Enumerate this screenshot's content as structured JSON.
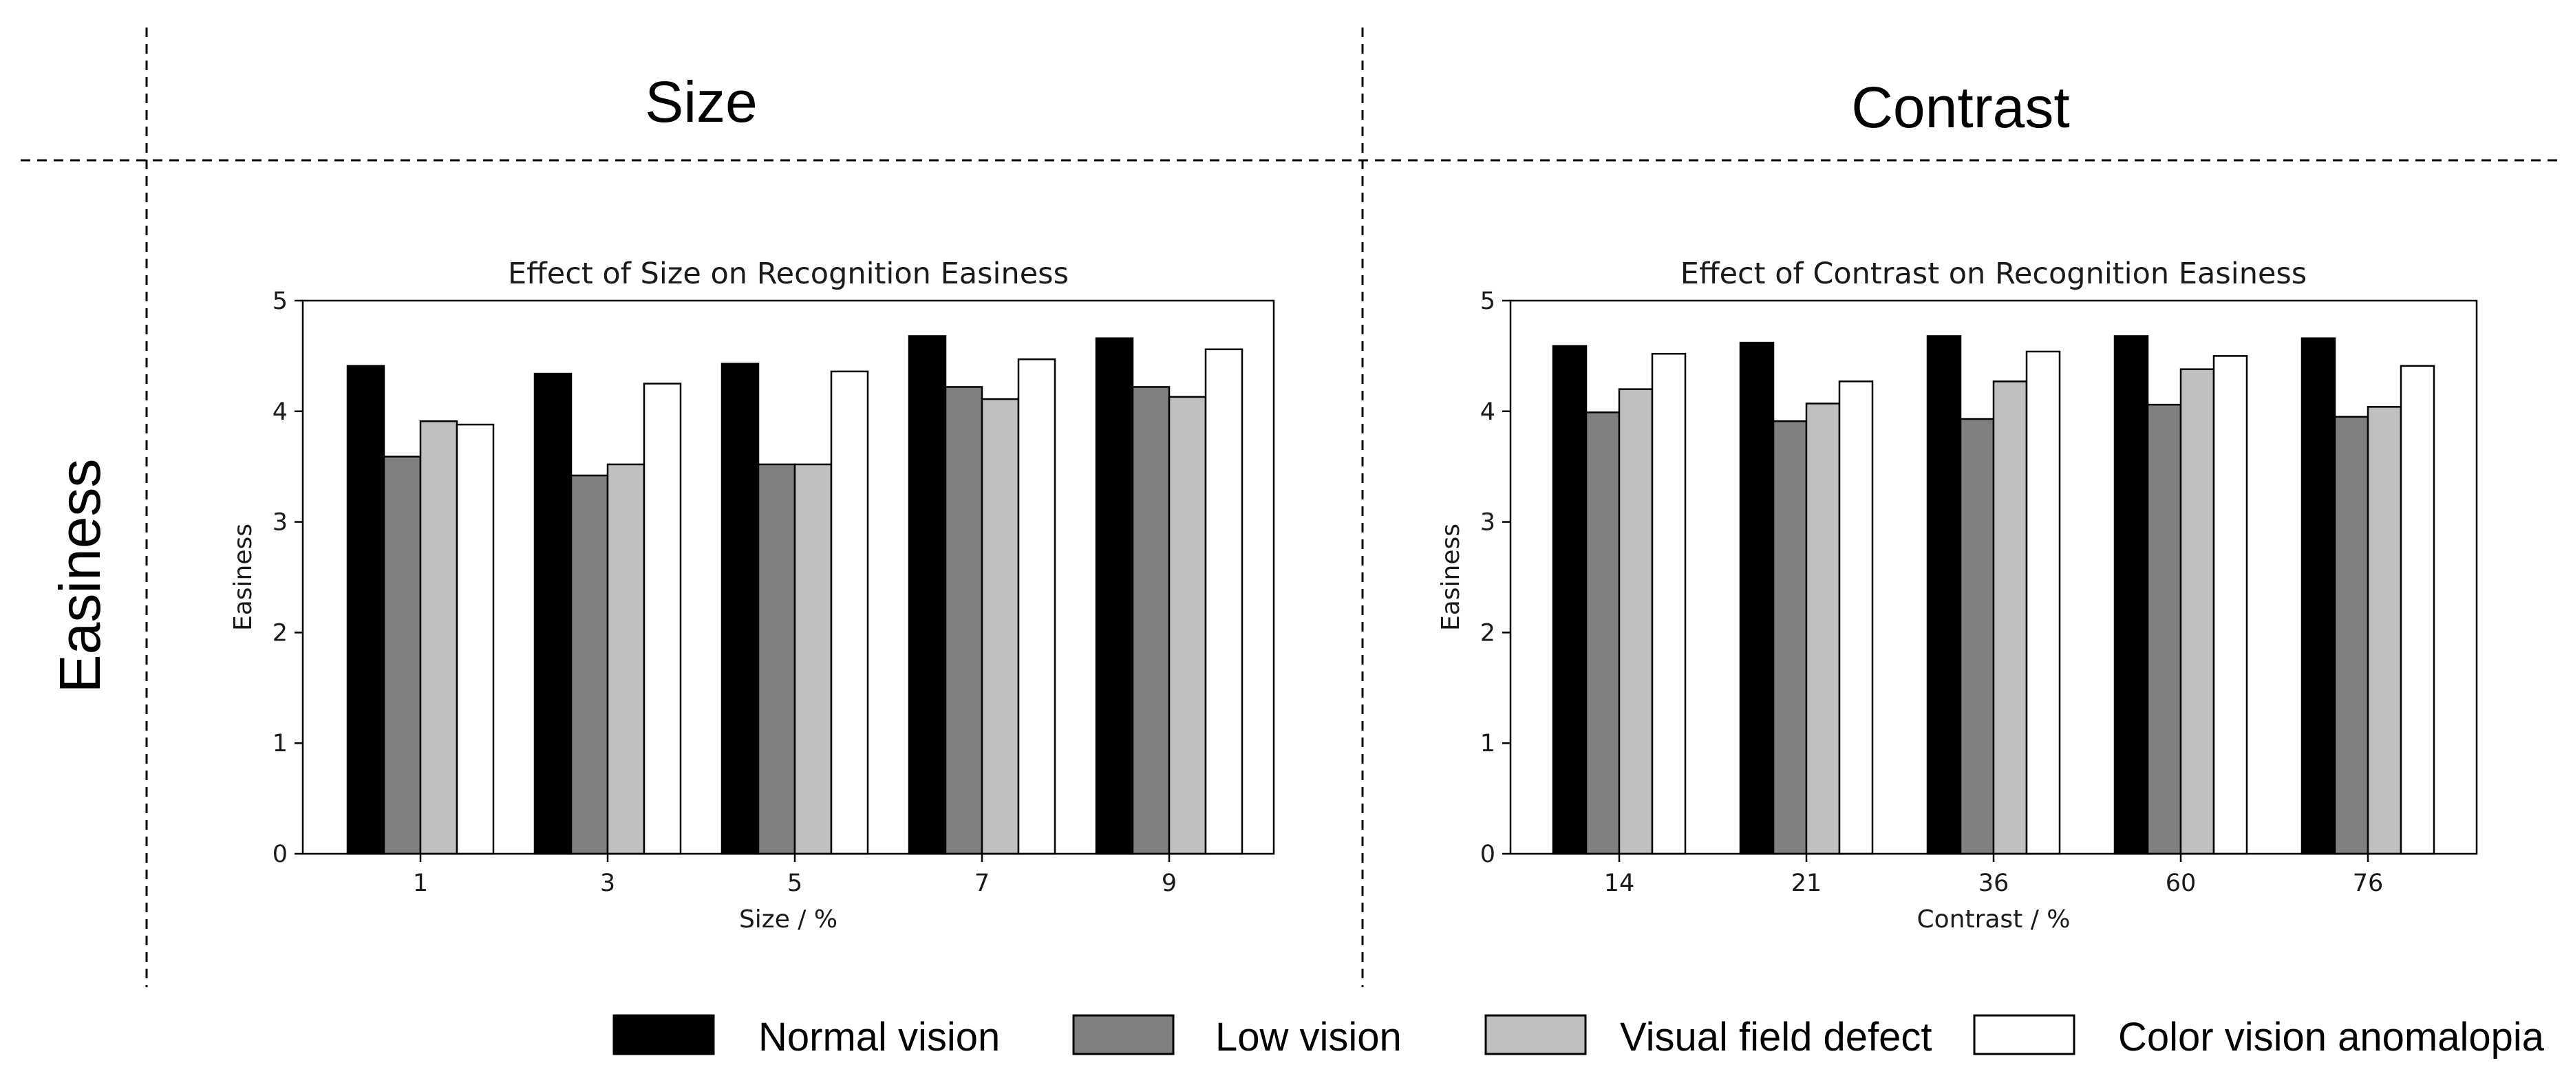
{
  "headers": {
    "size": "Size",
    "contrast": "Contrast",
    "row": "Easiness"
  },
  "legend": [
    {
      "label": "Normal vision",
      "color": "#000000"
    },
    {
      "label": "Low vision",
      "color": "#808080"
    },
    {
      "label": "Visual field defect",
      "color": "#c0c0c0"
    },
    {
      "label": "Color vision anomalopia",
      "color": "#ffffff"
    }
  ],
  "chart_data": [
    {
      "type": "bar",
      "title": "Effect of Size on Recognition Easiness",
      "xlabel": "Size / %",
      "ylabel": "Easiness",
      "ylim": [
        0,
        5
      ],
      "yticks": [
        0,
        1,
        2,
        3,
        4,
        5
      ],
      "categories": [
        "1",
        "3",
        "5",
        "7",
        "9"
      ],
      "series": [
        {
          "name": "Normal vision",
          "color": "#000000",
          "values": [
            4.41,
            4.34,
            4.43,
            4.68,
            4.66
          ]
        },
        {
          "name": "Low vision",
          "color": "#808080",
          "values": [
            3.59,
            3.42,
            3.52,
            4.22,
            4.22
          ]
        },
        {
          "name": "Visual field defect",
          "color": "#c0c0c0",
          "values": [
            3.91,
            3.52,
            3.52,
            4.11,
            4.13
          ]
        },
        {
          "name": "Color vision anomalopia",
          "color": "#ffffff",
          "values": [
            3.88,
            4.25,
            4.36,
            4.47,
            4.56
          ]
        }
      ]
    },
    {
      "type": "bar",
      "title": "Effect of Contrast on Recognition Easiness",
      "xlabel": "Contrast / %",
      "ylabel": "Easiness",
      "ylim": [
        0,
        5
      ],
      "yticks": [
        0,
        1,
        2,
        3,
        4,
        5
      ],
      "categories": [
        "14",
        "21",
        "36",
        "60",
        "76"
      ],
      "series": [
        {
          "name": "Normal vision",
          "color": "#000000",
          "values": [
            4.59,
            4.62,
            4.68,
            4.68,
            4.66
          ]
        },
        {
          "name": "Low vision",
          "color": "#808080",
          "values": [
            3.99,
            3.91,
            3.93,
            4.06,
            3.95
          ]
        },
        {
          "name": "Visual field defect",
          "color": "#c0c0c0",
          "values": [
            4.2,
            4.07,
            4.27,
            4.38,
            4.04
          ]
        },
        {
          "name": "Color vision anomalopia",
          "color": "#ffffff",
          "values": [
            4.52,
            4.27,
            4.54,
            4.5,
            4.41
          ]
        }
      ]
    }
  ]
}
